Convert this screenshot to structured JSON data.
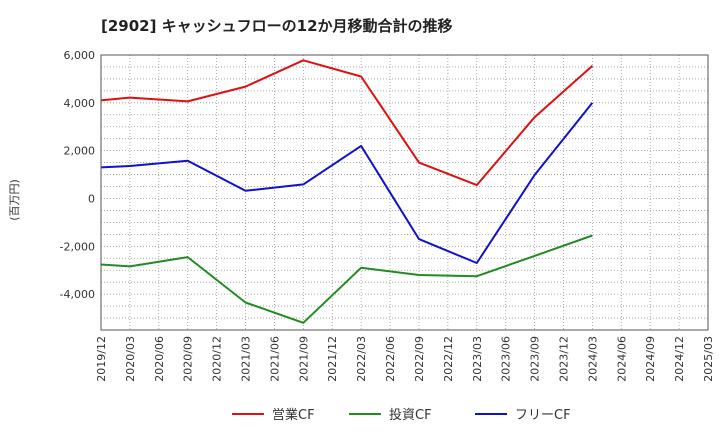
{
  "chart_data": {
    "type": "line",
    "title": "[2902]  キャッシュフローの12か月移動合計の推移",
    "ylabel": "(百万円)",
    "xlabel": "",
    "ylim": [
      -5500,
      6000
    ],
    "yticks": [
      -4000,
      -2000,
      0,
      2000,
      4000,
      6000
    ],
    "ytick_labels": [
      "-4,000",
      "-2,000",
      "0",
      "2,000",
      "4,000",
      "6,000"
    ],
    "categories": [
      "2019/12",
      "2020/03",
      "2020/06",
      "2020/09",
      "2020/12",
      "2021/03",
      "2021/06",
      "2021/09",
      "2021/12",
      "2022/03",
      "2022/06",
      "2022/09",
      "2022/12",
      "2023/03",
      "2023/06",
      "2023/09",
      "2023/12",
      "2024/03",
      "2024/06",
      "2024/09",
      "2024/12",
      "2025/03"
    ],
    "grid": true,
    "legend_position": "bottom",
    "series": [
      {
        "name": "営業CF",
        "color": "#dd1111",
        "values": [
          4100,
          4220,
          null,
          4060,
          null,
          4680,
          null,
          5780,
          null,
          5100,
          null,
          1500,
          null,
          560,
          null,
          3400,
          null,
          5550,
          null,
          null,
          null,
          null
        ]
      },
      {
        "name": "投資CF",
        "color": "#228b22",
        "values": [
          -2760,
          -2840,
          null,
          -2450,
          null,
          -4350,
          null,
          -5200,
          null,
          -2900,
          null,
          -3200,
          null,
          -3250,
          null,
          -2400,
          null,
          -1550,
          null,
          null,
          null,
          null
        ]
      },
      {
        "name": "フリーCF",
        "color": "#1111cc",
        "values": [
          1300,
          1360,
          null,
          1580,
          null,
          320,
          null,
          590,
          null,
          2200,
          null,
          -1700,
          null,
          -2700,
          null,
          980,
          null,
          4000,
          null,
          null,
          null,
          null
        ]
      }
    ]
  }
}
